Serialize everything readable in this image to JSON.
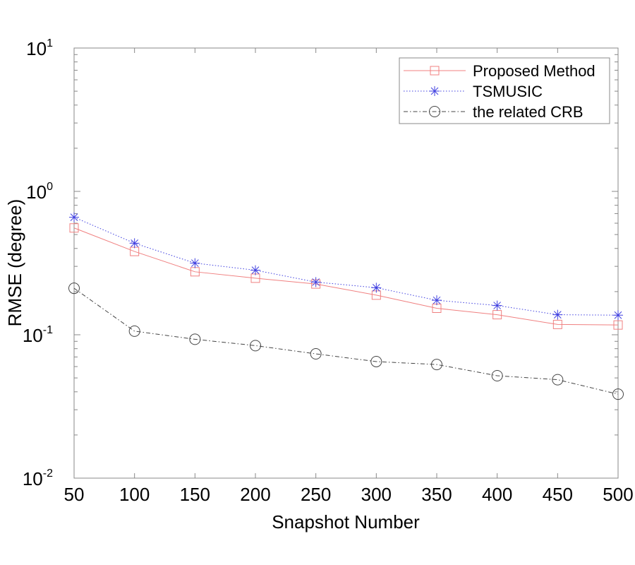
{
  "chart_data": {
    "type": "line",
    "title": "",
    "xlabel": "Snapshot Number",
    "ylabel": "RMSE (degree)",
    "x": [
      50,
      100,
      150,
      200,
      250,
      300,
      350,
      400,
      450,
      500
    ],
    "xlim": [
      50,
      500
    ],
    "ylim": [
      0.01,
      10
    ],
    "yscale": "log",
    "xticks": [
      "50",
      "100",
      "150",
      "200",
      "250",
      "300",
      "350",
      "400",
      "450",
      "500"
    ],
    "yticks": [
      {
        "base": "10",
        "exp": "-2"
      },
      {
        "base": "10",
        "exp": "-1"
      },
      {
        "base": "10",
        "exp": "0"
      },
      {
        "base": "10",
        "exp": "1"
      }
    ],
    "grid": false,
    "legend_position": "top-right",
    "series": [
      {
        "name": "Proposed Method",
        "color": "#f08080",
        "marker": "square",
        "dash": "solid",
        "values": [
          0.556,
          0.381,
          0.275,
          0.248,
          0.226,
          0.189,
          0.153,
          0.138,
          0.118,
          0.117
        ]
      },
      {
        "name": "TSMUSIC",
        "color": "#4040e0",
        "marker": "star",
        "dash": "dotted",
        "values": [
          0.66,
          0.435,
          0.316,
          0.282,
          0.233,
          0.213,
          0.174,
          0.16,
          0.138,
          0.137
        ]
      },
      {
        "name": "the related CRB",
        "color": "#444444",
        "marker": "circle",
        "dash": "dashdot",
        "values": [
          0.211,
          0.106,
          0.093,
          0.084,
          0.0736,
          0.065,
          0.062,
          0.0518,
          0.0486,
          0.0385
        ]
      }
    ]
  }
}
